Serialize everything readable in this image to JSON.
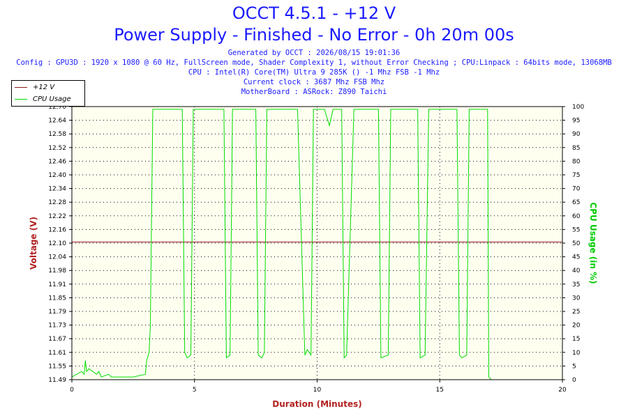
{
  "header": {
    "title": "OCCT 4.5.1 - +12 V",
    "subtitle": "Power Supply - Finished - No Error - 0h 20m 00s",
    "info_lines": [
      "Generated by OCCT : 2026/08/15 19:01:36",
      "Config : GPU3D : 1920 x 1080 @ 60 Hz, FullScreen mode, Shader Complexity 1, without Error Checking ; CPU:Linpack : 64bits mode, 13068MB",
      "CPU : Intel(R) Core(TM) Ultra 9 285K () -1 Mhz FSB -1 Mhz",
      "Current clock : 3687 Mhz FSB  Mhz",
      "MotherBoard : ASRock: Z890 Taichi"
    ]
  },
  "colors": {
    "title": "#1a1aff",
    "plot_bg": "#fffff0",
    "voltage": "#8b1a1a",
    "cpu": "#00dd00",
    "axis_title_left": "#b22222",
    "axis_title_right": "#00cc00",
    "axis_title_bottom": "#b22222"
  },
  "chart_data": {
    "type": "line",
    "xlabel": "Duration (Minutes)",
    "ylabel": "Voltage (V)",
    "y2label": "CPU Usage (in %)",
    "xlim": [
      0,
      20
    ],
    "ylim": [
      11.49,
      12.7
    ],
    "y2lim": [
      0,
      100
    ],
    "x_ticks": [
      "0",
      "5",
      "10",
      "15",
      "20"
    ],
    "y_ticks": [
      "11.49",
      "11.55",
      "11.61",
      "11.67",
      "11.73",
      "11.79",
      "11.85",
      "11.91",
      "11.98",
      "12.04",
      "12.10",
      "12.16",
      "12.22",
      "12.28",
      "12.34",
      "12.40",
      "12.46",
      "12.52",
      "12.58",
      "12.64",
      "12.70"
    ],
    "y2_ticks": [
      "0",
      "5",
      "10",
      "15",
      "20",
      "25",
      "30",
      "35",
      "40",
      "45",
      "50",
      "55",
      "60",
      "65",
      "70",
      "75",
      "80",
      "85",
      "90",
      "95",
      "100"
    ],
    "grid": true,
    "legend": "top-left",
    "series": [
      {
        "name": "+12 V",
        "axis": "left",
        "x": [
          0,
          20
        ],
        "y": [
          12.1,
          12.1
        ]
      },
      {
        "name": "CPU Usage",
        "axis": "right",
        "x": [
          0,
          0.4,
          0.5,
          0.55,
          0.6,
          0.7,
          1.0,
          1.1,
          1.2,
          1.5,
          1.6,
          2.0,
          2.5,
          3.0,
          3.05,
          3.15,
          3.2,
          3.25,
          3.3,
          4.4,
          4.5,
          4.6,
          4.7,
          4.85,
          4.95,
          6.1,
          6.2,
          6.3,
          6.45,
          6.55,
          7.5,
          7.6,
          7.75,
          7.85,
          7.95,
          9.1,
          9.2,
          9.5,
          9.6,
          9.75,
          9.85,
          10.3,
          10.5,
          10.65,
          10.8,
          11.0,
          11.1,
          11.2,
          11.5,
          11.65,
          12.5,
          12.6,
          12.9,
          13.0,
          13.15,
          14.1,
          14.2,
          14.4,
          14.55,
          14.65,
          15.7,
          15.8,
          15.9,
          16.1,
          16.2,
          16.9,
          16.95,
          17.0,
          17.1,
          20
        ],
        "y": [
          1,
          3,
          2,
          7,
          3,
          4,
          2,
          3,
          1,
          2,
          1,
          1,
          1,
          2,
          7,
          10,
          20,
          60,
          99,
          99,
          99,
          10,
          8,
          9,
          99,
          99,
          99,
          8,
          9,
          99,
          99,
          9,
          8,
          10,
          99,
          99,
          99,
          9,
          11,
          9,
          99,
          99,
          93,
          99,
          99,
          99,
          8,
          9,
          99,
          99,
          99,
          8,
          9,
          99,
          99,
          99,
          8,
          9,
          99,
          99,
          99,
          9,
          8,
          9,
          99,
          99,
          99,
          1,
          0,
          0
        ]
      }
    ]
  }
}
